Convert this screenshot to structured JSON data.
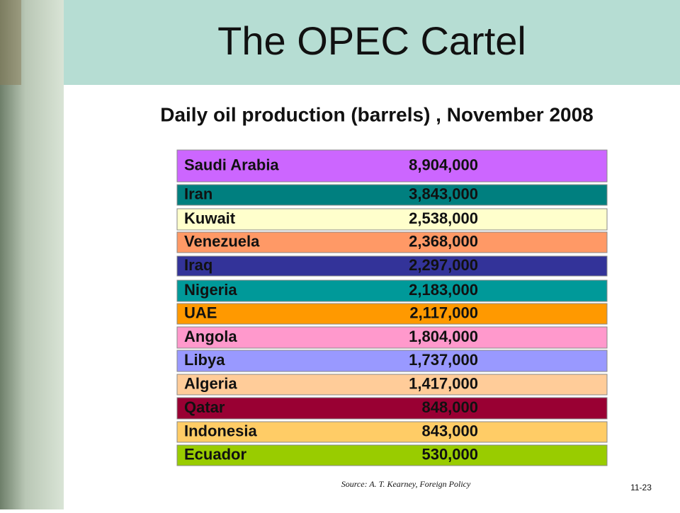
{
  "header": {
    "title": "The OPEC Cartel",
    "subtitle": "Daily oil production (barrels) , November 2008"
  },
  "table": {
    "rows": [
      {
        "name": "Saudi Arabia",
        "value": "8,904,000",
        "color": "#cc66ff"
      },
      {
        "name": "Iran",
        "value": "3,843,000",
        "color": "#007f7f"
      },
      {
        "name": "Kuwait",
        "value": "2,538,000",
        "color": "#ffffcc"
      },
      {
        "name": "Venezuela",
        "value": "2,368,000",
        "color": "#ff9966"
      },
      {
        "name": "Iraq",
        "value": "2,297,000",
        "color": "#333399"
      },
      {
        "name": "Nigeria",
        "value": "2,183,000",
        "color": "#009999"
      },
      {
        "name": "UAE",
        "value": "2,117,000",
        "color": "#ff9900"
      },
      {
        "name": "Angola",
        "value": "1,804,000",
        "color": "#ff99cc"
      },
      {
        "name": "Libya",
        "value": "1,737,000",
        "color": "#9999ff"
      },
      {
        "name": "Algeria",
        "value": "1,417,000",
        "color": "#ffcc99"
      },
      {
        "name": "Qatar",
        "value": "848,000",
        "color": "#990033"
      },
      {
        "name": "Indonesia",
        "value": "843,000",
        "color": "#ffcc66"
      },
      {
        "name": "Ecuador",
        "value": "530,000",
        "color": "#99cc00"
      }
    ]
  },
  "footer": {
    "source": "Source: A. T. Kearney, Foreign Policy",
    "slide_number": "11-23"
  }
}
